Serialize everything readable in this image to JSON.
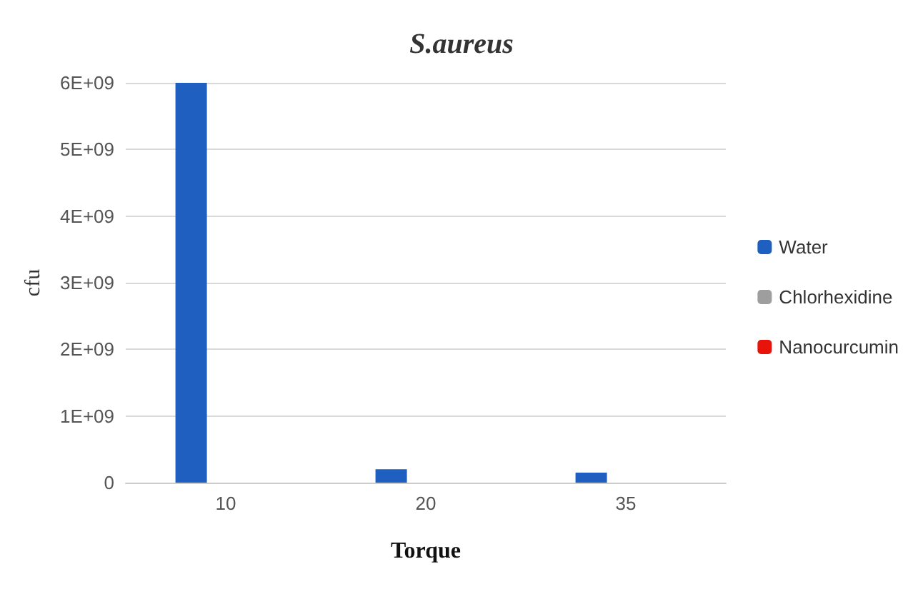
{
  "chart_data": {
    "type": "bar",
    "title": "S.aureus",
    "xlabel": "Torque",
    "ylabel": "cfu",
    "categories": [
      "10",
      "20",
      "35"
    ],
    "series": [
      {
        "name": "Water",
        "color": "#1f5fbf",
        "values": [
          6000000000,
          200000000,
          150000000
        ]
      },
      {
        "name": "Chlorhexidine",
        "color": "#9e9e9e",
        "values": [
          0,
          0,
          0
        ]
      },
      {
        "name": "Nanocurcumin",
        "color": "#e8140c",
        "values": [
          0,
          0,
          0
        ]
      }
    ],
    "ylim": [
      0,
      6000000000
    ],
    "yticks": [
      0,
      {
        "value": 1000000000,
        "label": "1E+09"
      },
      {
        "value": 2000000000,
        "label": "2E+09"
      },
      {
        "value": 3000000000,
        "label": "3E+09"
      },
      {
        "value": 4000000000,
        "label": "4E+09"
      },
      {
        "value": 5000000000,
        "label": "5E+09"
      },
      {
        "value": 6000000000,
        "label": "6E+09"
      }
    ],
    "grid": "y",
    "legend": "right"
  }
}
